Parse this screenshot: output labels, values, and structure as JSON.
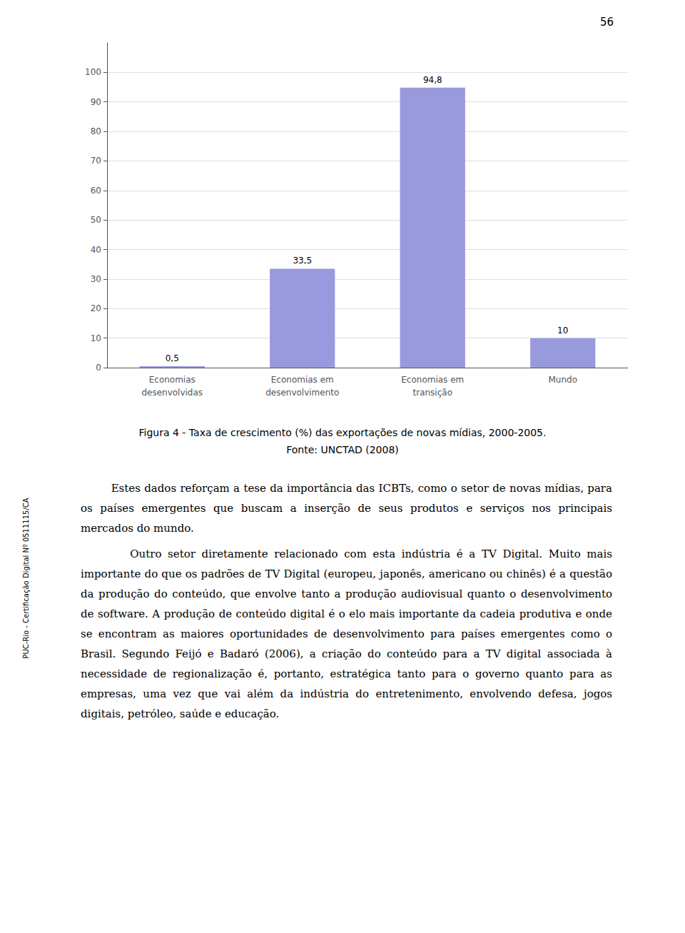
{
  "chart_data": {
    "type": "bar",
    "title": "Figura 4 - Taxa de crescimento (%) das exportações de novas mídias, 2000-2005.",
    "subtitle": "Fonte: UNCTAD (2008)",
    "categories": [
      "Economias\ndesenvolvidas",
      "Economias em\ndesenvolvimento",
      "Economias em\ntransição",
      "Mundo"
    ],
    "values": [
      0.5,
      33.5,
      94.8,
      10
    ],
    "value_labels": [
      "0,5",
      "33,5",
      "94,8",
      "10"
    ],
    "data_labels": true,
    "color": "#9999DD",
    "ylim": [
      0,
      110
    ],
    "yticks": [
      0,
      10,
      20,
      30,
      40,
      50,
      60,
      70,
      80,
      90,
      100
    ],
    "grid": true,
    "annotations": [
      "56",
      "PUC-Rio - Certificação Digital Nº 0511115/CA",
      "        Estes dados reforçam a tese da importância das ICBTs, como o setor de novas mídias, para os países emergentes que buscam a inserção de seus produtos e serviços nos principais mercados do mundo.",
      "        Outro setor diretamente relacionado com esta indústria é a TV Digital. Muito mais importante do que os padrões de TV Digital (europeu, japonês, americano ou chinês) é a questão da produção do conteúdo, que envolve tanto a produção audiovisual quanto o desenvolvimento de software. A produção de conteúdo digital é o elo mais importante da cadeia produtiva e onde se encontram as maiores oportunidades de desenvolvimento para países emergentes como o Brasil. Segundo Feijó e Badaró (2006), a criação do conteúdo para a TV digital associada à necessidade de regionalização é, portanto, estratégica tanto para o governo quanto para as empresas, uma vez que vai além da indústria do entretenimento, envolvendo defesa, jogos digitais, petróleo, saúde e educação."
    ]
  }
}
